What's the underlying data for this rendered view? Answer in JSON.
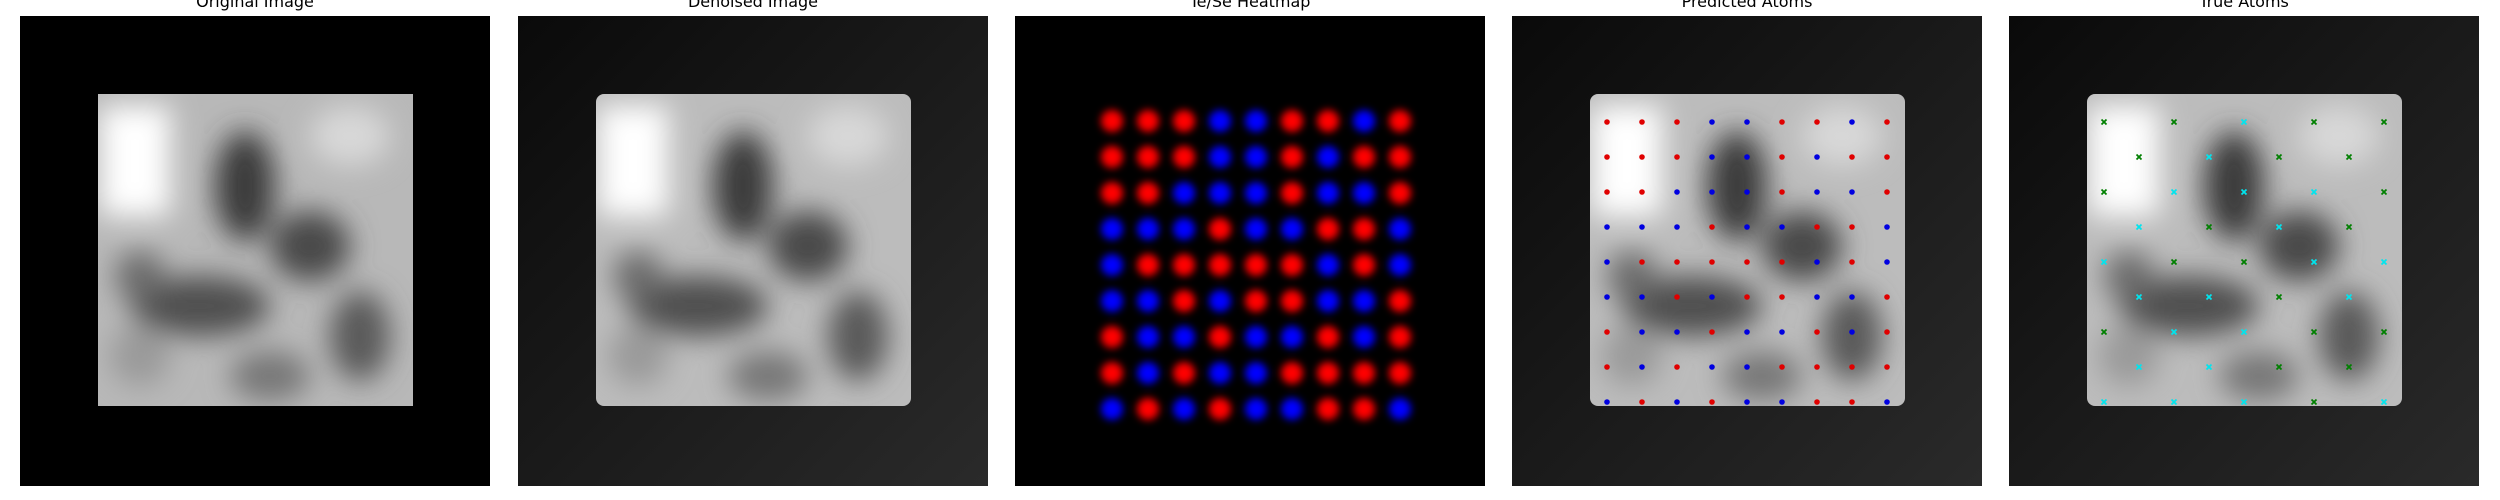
{
  "panels": [
    {
      "title": "Original Image"
    },
    {
      "title": "Denoised Image"
    },
    {
      "title": "Te/Se Heatmap"
    },
    {
      "title": "Predicted Atoms"
    },
    {
      "title": "True Atoms"
    }
  ],
  "colors": {
    "te": "#ff0000",
    "se": "#0000ff",
    "predicted_te": "#e00000",
    "predicted_se": "#0000e0",
    "true_te": "#008000",
    "true_se": "#00e5ee",
    "background": "#000000"
  },
  "heatmap_grid": [
    [
      "r",
      "r",
      "r",
      "b",
      "b",
      "r",
      "r",
      "b",
      "r"
    ],
    [
      "r",
      "r",
      "r",
      "b",
      "b",
      "r",
      "b",
      "r",
      "r"
    ],
    [
      "r",
      "r",
      "b",
      "b",
      "b",
      "r",
      "b",
      "b",
      "r"
    ],
    [
      "b",
      "b",
      "b",
      "r",
      "b",
      "b",
      "r",
      "r",
      "b"
    ],
    [
      "b",
      "r",
      "r",
      "r",
      "r",
      "r",
      "b",
      "r",
      "b"
    ],
    [
      "b",
      "b",
      "r",
      "b",
      "r",
      "r",
      "b",
      "b",
      "r"
    ],
    [
      "r",
      "b",
      "b",
      "r",
      "b",
      "b",
      "r",
      "b",
      "r"
    ],
    [
      "r",
      "b",
      "r",
      "b",
      "b",
      "r",
      "r",
      "r",
      "r"
    ],
    [
      "b",
      "r",
      "b",
      "r",
      "b",
      "b",
      "r",
      "r",
      "b"
    ]
  ]
}
